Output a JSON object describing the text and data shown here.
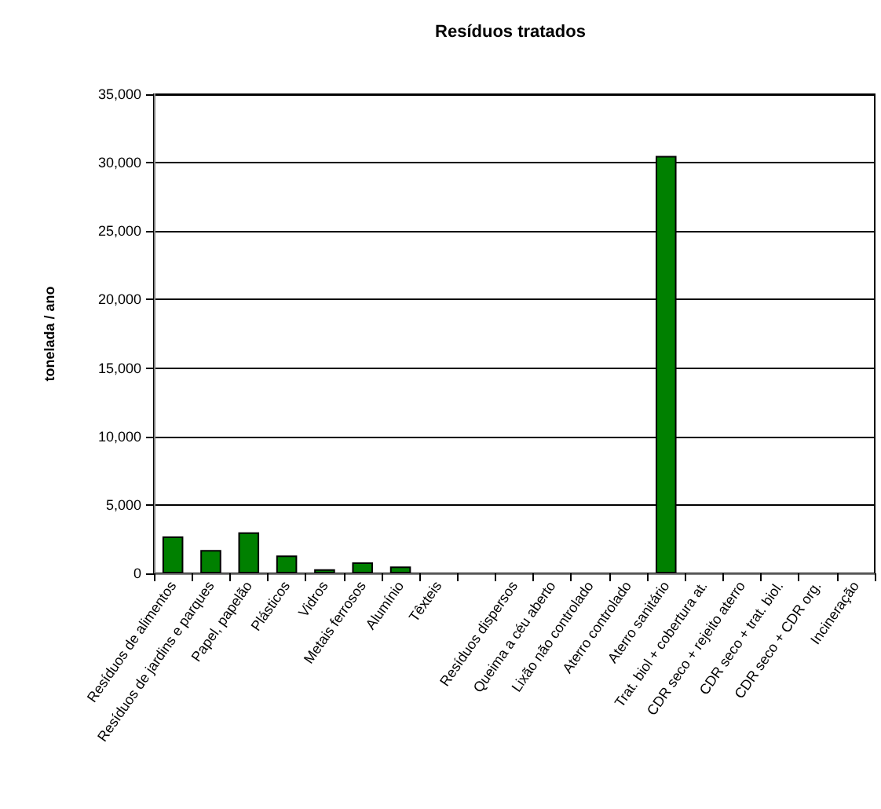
{
  "chart_data": {
    "type": "bar",
    "title": "Resíduos tratados",
    "ylabel": "tonelada / ano",
    "categories": [
      "Resíduos de alimentos",
      "Resíduos de jardins e parques",
      "Papel, papelão",
      "Plásticos",
      "Vidros",
      "Metais ferrosos",
      "Alumínio",
      "Têxteis",
      null,
      "Resíduos dispersos",
      "Queima a céu aberto",
      "Lixão não controlado",
      "Aterro controlado",
      "Aterro sanitário",
      "Trat. biol + cobertura at.",
      "CDR seco + rejeito aterro",
      "CDR seco + trat. biol.",
      "CDR seco + CDR org.",
      "Incineração"
    ],
    "values": [
      2700,
      1700,
      3000,
      1300,
      300,
      800,
      500,
      0,
      null,
      0,
      0,
      0,
      0,
      30500,
      0,
      0,
      0,
      0,
      0
    ],
    "color": "#008000",
    "ylim": [
      0,
      35000
    ],
    "yticks": [
      {
        "value": 0,
        "label": "0"
      },
      {
        "value": 5000,
        "label": "5,000"
      },
      {
        "value": 10000,
        "label": "10,000"
      },
      {
        "value": 15000,
        "label": "15,000"
      },
      {
        "value": 20000,
        "label": "20,000"
      },
      {
        "value": 25000,
        "label": "25,000"
      },
      {
        "value": 30000,
        "label": "30,000"
      },
      {
        "value": 35000,
        "label": "35,000"
      }
    ],
    "grid": "y"
  }
}
